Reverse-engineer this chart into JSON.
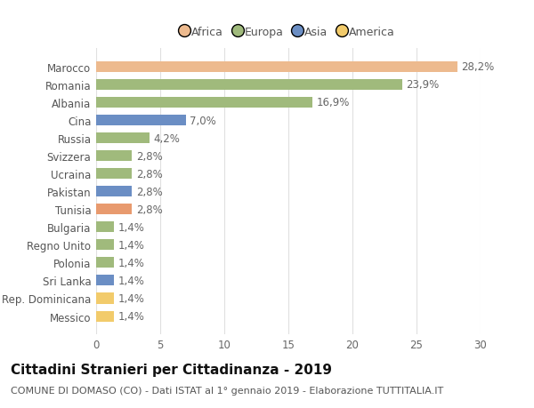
{
  "countries": [
    "Messico",
    "Rep. Dominicana",
    "Sri Lanka",
    "Polonia",
    "Regno Unito",
    "Bulgaria",
    "Tunisia",
    "Pakistan",
    "Ucraina",
    "Svizzera",
    "Russia",
    "Cina",
    "Albania",
    "Romania",
    "Marocco"
  ],
  "values": [
    1.4,
    1.4,
    1.4,
    1.4,
    1.4,
    1.4,
    2.8,
    2.8,
    2.8,
    2.8,
    4.2,
    7.0,
    16.9,
    23.9,
    28.2
  ],
  "colors": [
    "#f2cb6b",
    "#f2cb6b",
    "#6b8ec4",
    "#a0ba7c",
    "#a0ba7c",
    "#a0ba7c",
    "#e89a6e",
    "#6b8ec4",
    "#a0ba7c",
    "#a0ba7c",
    "#a0ba7c",
    "#6b8ec4",
    "#a0ba7c",
    "#a0ba7c",
    "#edba8e"
  ],
  "legend_labels": [
    "Africa",
    "Europa",
    "Asia",
    "America"
  ],
  "legend_colors": [
    "#edba8e",
    "#a0ba7c",
    "#6b8ec4",
    "#f2cb6b"
  ],
  "title": "Cittadini Stranieri per Cittadinanza - 2019",
  "subtitle": "COMUNE DI DOMASO (CO) - Dati ISTAT al 1° gennaio 2019 - Elaborazione TUTTITALIA.IT",
  "xlim": [
    0,
    30
  ],
  "xticks": [
    0,
    5,
    10,
    15,
    20,
    25,
    30
  ],
  "bg_color": "#ffffff",
  "grid_color": "#e0e0e0",
  "bar_height": 0.6,
  "label_fontsize": 8.5,
  "tick_fontsize": 8.5,
  "title_fontsize": 11,
  "subtitle_fontsize": 8
}
